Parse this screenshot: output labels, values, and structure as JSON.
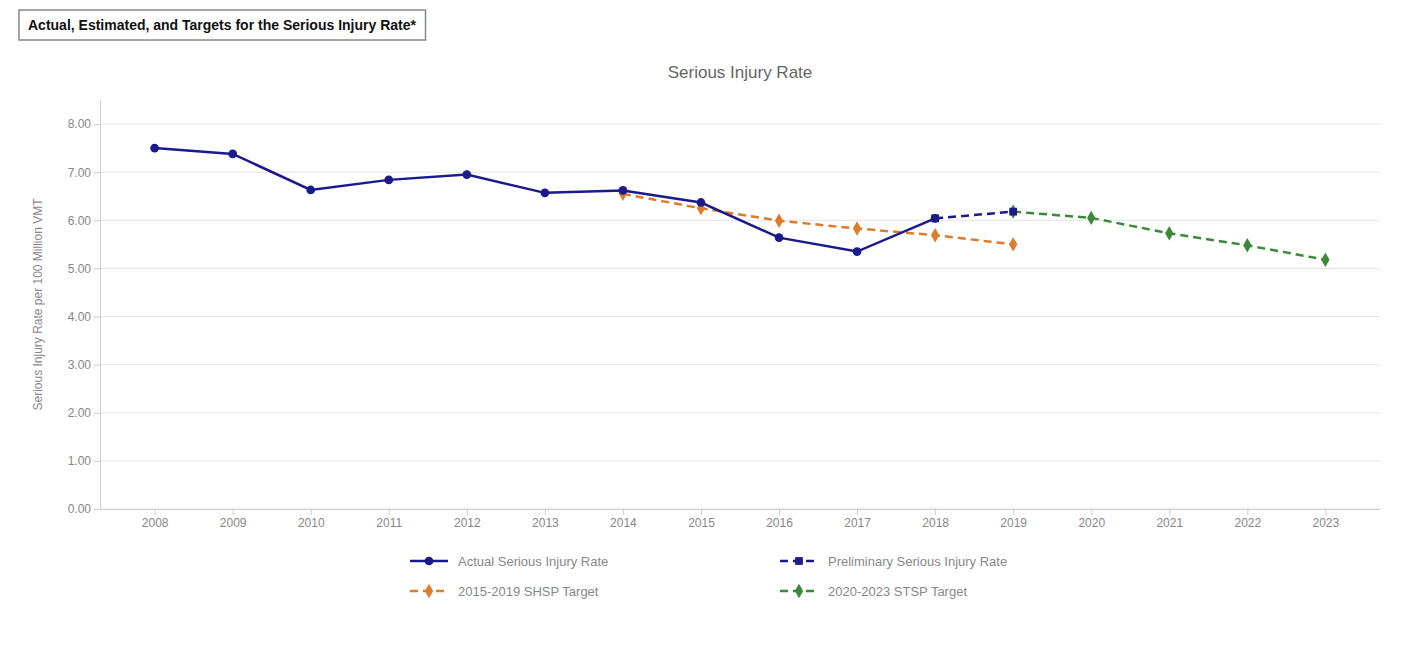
{
  "chart_data": {
    "type": "line",
    "title": "Serious Injury Rate",
    "subtitle": "Actual, Estimated, and Targets for the Serious Injury Rate*",
    "ylabel": "Serious Injury Rate per 100 Million VMT",
    "x": [
      2008,
      2009,
      2010,
      2011,
      2012,
      2013,
      2014,
      2015,
      2016,
      2017,
      2018,
      2019,
      2020,
      2021,
      2022,
      2023
    ],
    "xlim": [
      2007.3,
      2023.7
    ],
    "xticks": [
      2008,
      2009,
      2010,
      2011,
      2012,
      2013,
      2014,
      2015,
      2016,
      2017,
      2018,
      2019,
      2020,
      2021,
      2022,
      2023
    ],
    "ylim": [
      0.0,
      8.5
    ],
    "yticks": [
      {
        "value": 0.0,
        "label": "0.00"
      },
      {
        "value": 1.0,
        "label": "1.00"
      },
      {
        "value": 2.0,
        "label": "2.00"
      },
      {
        "value": 3.0,
        "label": "3.00"
      },
      {
        "value": 4.0,
        "label": "4.00"
      },
      {
        "value": 5.0,
        "label": "5.00"
      },
      {
        "value": 6.0,
        "label": "6.00"
      },
      {
        "value": 7.0,
        "label": "7.00"
      },
      {
        "value": 8.0,
        "label": "8.00"
      }
    ],
    "grid": true,
    "legend": "bottom",
    "series": [
      {
        "name": "Actual Serious Injury Rate",
        "color": "#1a1a8c",
        "marker": "circle",
        "line_style": "solid",
        "values": [
          7.5,
          7.38,
          6.63,
          6.84,
          6.95,
          6.57,
          6.62,
          6.37,
          5.64,
          5.35,
          6.04,
          null,
          null,
          null,
          null,
          null
        ]
      },
      {
        "name": "Preliminary Serious Injury Rate",
        "color": "#1a1a8c",
        "marker": "square",
        "line_style": "dashed",
        "values": [
          null,
          null,
          null,
          null,
          null,
          null,
          null,
          null,
          null,
          null,
          6.04,
          6.18,
          null,
          null,
          null,
          null
        ]
      },
      {
        "name": "2015-2019 SHSP Target",
        "color": "#e07b2a",
        "marker": "diamond",
        "line_style": "dashed",
        "values": [
          null,
          null,
          null,
          null,
          null,
          null,
          6.55,
          6.25,
          5.99,
          5.83,
          5.69,
          5.5,
          null,
          null,
          null,
          null
        ]
      },
      {
        "name": "2020-2023 STSP Target",
        "color": "#3a8a3a",
        "marker": "diamond",
        "line_style": "dashed",
        "values": [
          null,
          null,
          null,
          null,
          null,
          null,
          null,
          null,
          null,
          null,
          null,
          6.18,
          6.05,
          5.73,
          5.48,
          5.18
        ]
      }
    ]
  }
}
